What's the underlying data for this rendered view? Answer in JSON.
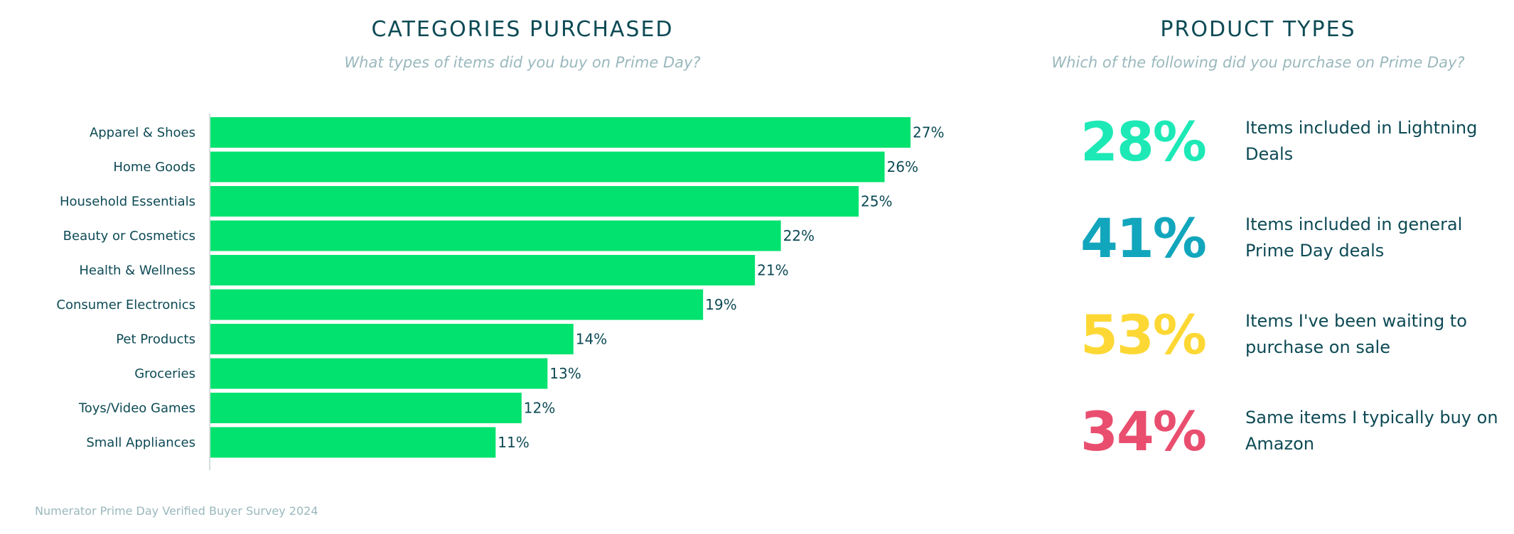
{
  "left": {
    "title": "CATEGORIES PURCHASED",
    "subtitle": "What types of items did you buy on Prime Day?"
  },
  "right": {
    "title": "PRODUCT TYPES",
    "subtitle": "Which of the following did you purchase on Prime Day?",
    "stats": [
      {
        "value": "28%",
        "label": "Items included in Lightning Deals",
        "color": "#1de9b6"
      },
      {
        "value": "41%",
        "label": "Items included in general Prime Day deals",
        "color": "#12a6bd"
      },
      {
        "value": "53%",
        "label": "Items I've been waiting to purchase on sale",
        "color": "#fdd835"
      },
      {
        "value": "34%",
        "label": "Same items I typically buy on Amazon",
        "color": "#e94e6f"
      }
    ]
  },
  "source": "Numerator Prime Day Verified Buyer Survey 2024",
  "chart_data": {
    "type": "bar",
    "orientation": "horizontal",
    "title": "CATEGORIES PURCHASED",
    "subtitle": "What types of items did you buy on Prime Day?",
    "categories": [
      "Apparel & Shoes",
      "Home Goods",
      "Household Essentials",
      "Beauty or Cosmetics",
      "Health & Wellness",
      "Consumer Electronics",
      "Pet Products",
      "Groceries",
      "Toys/Video Games",
      "Small Appliances"
    ],
    "values": [
      27,
      26,
      25,
      22,
      21,
      19,
      14,
      13,
      12,
      11
    ],
    "value_suffix": "%",
    "xlim": [
      0,
      27
    ],
    "grid": false,
    "bar_color": "#02e26e",
    "label_color": "#0d4a55",
    "axis_color": "#d6dee0"
  }
}
